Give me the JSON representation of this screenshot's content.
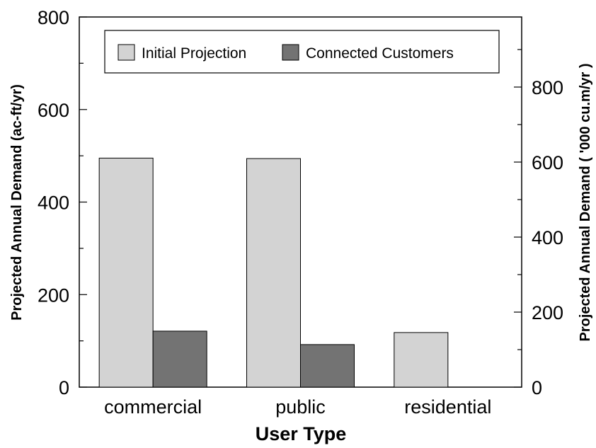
{
  "chart_data": {
    "type": "bar",
    "title": "",
    "xlabel": "User Type",
    "ylabel": "Projected Annual Demand (ac-ft/yr)",
    "y2label": "Projected Annual Demand ( '000 cu.m/yr )",
    "categories": [
      "commercial",
      "public",
      "residential"
    ],
    "series": [
      {
        "name": "Initial Projection",
        "values": [
          495,
          494,
          118
        ]
      },
      {
        "name": "Connected Customers",
        "values": [
          121,
          92,
          0
        ]
      }
    ],
    "ylim": [
      0,
      800
    ],
    "yticks": [
      0,
      200,
      400,
      600,
      800
    ],
    "y2lim": [
      0,
      986.8
    ],
    "y2ticks": [
      0,
      200,
      400,
      600,
      800
    ],
    "grid": false,
    "legend": "top",
    "colors": {
      "Initial Projection": "#d3d3d3",
      "Connected Customers": "#737373"
    }
  }
}
